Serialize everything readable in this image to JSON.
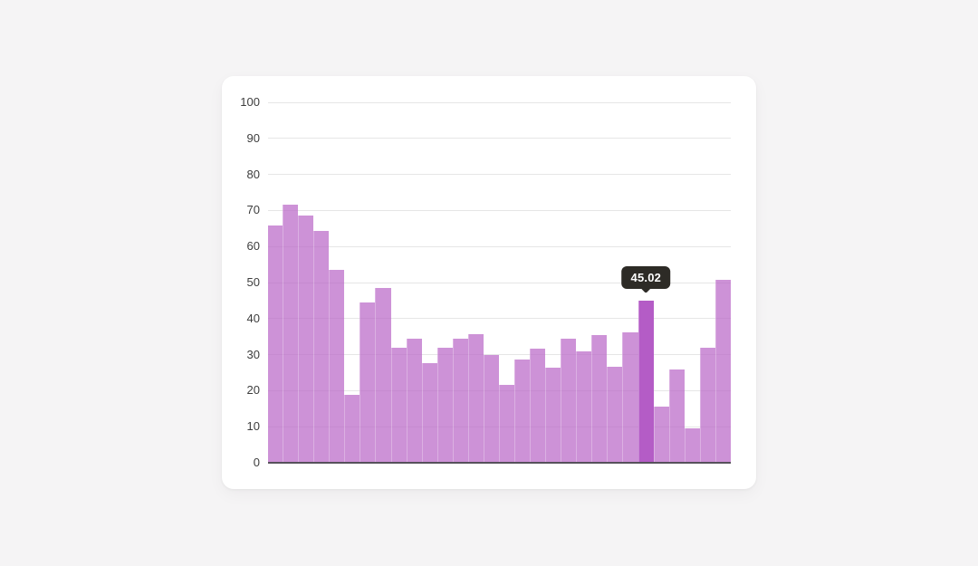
{
  "chart_data": {
    "type": "bar",
    "title": "",
    "xlabel": "",
    "ylabel": "",
    "values": [
      65.8,
      71.7,
      68.6,
      64.4,
      53.6,
      18.8,
      44.4,
      48.6,
      31.8,
      34.5,
      27.6,
      31.8,
      34.5,
      35.8,
      29.9,
      21.6,
      28.7,
      31.6,
      26.5,
      34.4,
      31.0,
      35.4,
      26.6,
      36.1,
      45.02,
      15.6,
      25.8,
      9.5,
      32.0,
      50.7
    ],
    "highlighted_index": 24,
    "ylim": [
      0,
      100
    ],
    "yticks": [
      0,
      10,
      20,
      30,
      40,
      50,
      60,
      70,
      80,
      90,
      100
    ],
    "grid": true,
    "legend": false,
    "tooltip": {
      "label": "45.02",
      "background": "#2d2b26",
      "text_color": "#ffffff"
    },
    "colors": {
      "page_background": "#f5f4f5",
      "card_background": "#ffffff",
      "bar": "rgba(186,104,200,0.72)",
      "bar_highlight": "#b45cc6",
      "gridline": "#e6e6e6",
      "axis_line": "#56515b",
      "tick_label": "#3d3d3d"
    }
  }
}
